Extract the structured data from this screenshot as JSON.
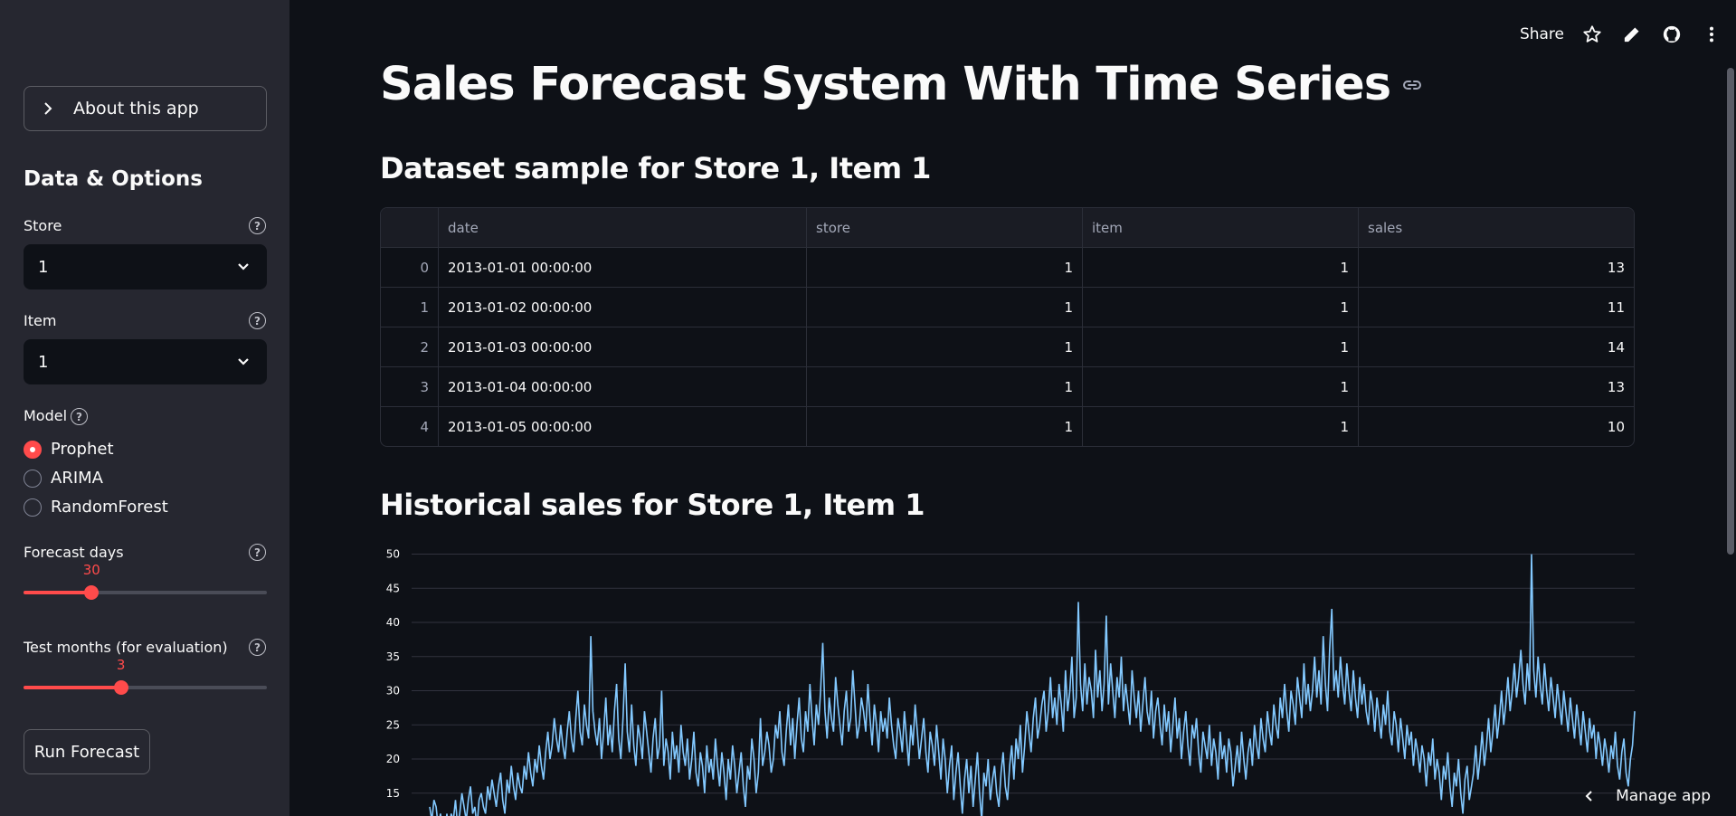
{
  "sidebar": {
    "about_label": "About this app",
    "section_title": "Data & Options",
    "store": {
      "label": "Store",
      "value": "1"
    },
    "item": {
      "label": "Item",
      "value": "1"
    },
    "model": {
      "label": "Model",
      "options": [
        "Prophet",
        "ARIMA",
        "RandomForest"
      ],
      "selected": "Prophet"
    },
    "forecast_days": {
      "label": "Forecast days",
      "value": "30",
      "fraction": 0.28
    },
    "test_months": {
      "label": "Test months (for evaluation)",
      "value": "3",
      "fraction": 0.4
    },
    "run_label": "Run Forecast"
  },
  "toolbar": {
    "share_label": "Share"
  },
  "main": {
    "title": "Sales Forecast System With Time Series",
    "dataset_heading": "Dataset sample for Store 1, Item 1",
    "history_heading": "Historical sales for Store 1, Item 1"
  },
  "table": {
    "columns": [
      "date",
      "store",
      "item",
      "sales"
    ],
    "rows": [
      [
        "0",
        "2013-01-01 00:00:00",
        "1",
        "1",
        "13"
      ],
      [
        "1",
        "2013-01-02 00:00:00",
        "1",
        "1",
        "11"
      ],
      [
        "2",
        "2013-01-03 00:00:00",
        "1",
        "1",
        "14"
      ],
      [
        "3",
        "2013-01-04 00:00:00",
        "1",
        "1",
        "13"
      ],
      [
        "4",
        "2013-01-05 00:00:00",
        "1",
        "1",
        "10"
      ]
    ]
  },
  "chart_data": {
    "type": "line",
    "title": "",
    "xlabel": "",
    "ylabel": "",
    "ylim": [
      8,
      51
    ],
    "yticks": [
      15,
      20,
      25,
      30,
      35,
      40,
      45,
      50
    ],
    "grid": true,
    "line_color": "#83c9ff",
    "series": [
      {
        "values": [
          13,
          11,
          14,
          13,
          10,
          12,
          10,
          9,
          12,
          9,
          12,
          11,
          14,
          10,
          12,
          15,
          13,
          11,
          14,
          16,
          12,
          13,
          10,
          14,
          15,
          13,
          12,
          16,
          14,
          17,
          15,
          13,
          16,
          18,
          14,
          12,
          17,
          15,
          19,
          16,
          14,
          18,
          16,
          15,
          19,
          17,
          21,
          18,
          16,
          20,
          18,
          22,
          19,
          17,
          21,
          24,
          20,
          22,
          26,
          23,
          21,
          25,
          22,
          20,
          24,
          27,
          23,
          21,
          26,
          30,
          24,
          22,
          28,
          25,
          23,
          38,
          27,
          24,
          22,
          26,
          20,
          24,
          29,
          22,
          25,
          21,
          27,
          31,
          23,
          20,
          26,
          34,
          24,
          21,
          28,
          22,
          19,
          25,
          23,
          20,
          27,
          24,
          21,
          18,
          23,
          26,
          20,
          22,
          30,
          19,
          23,
          21,
          17,
          24,
          20,
          22,
          18,
          25,
          21,
          19,
          23,
          17,
          20,
          24,
          18,
          16,
          21,
          19,
          15,
          22,
          18,
          20,
          17,
          23,
          19,
          16,
          21,
          18,
          14,
          20,
          17,
          22,
          19,
          15,
          18,
          21,
          16,
          13,
          19,
          17,
          23,
          20,
          15,
          18,
          26,
          19,
          21,
          24,
          22,
          18,
          20,
          25,
          23,
          27,
          21,
          19,
          24,
          28,
          22,
          26,
          20,
          25,
          29,
          23,
          21,
          27,
          24,
          31,
          26,
          22,
          28,
          25,
          30,
          37,
          27,
          23,
          29,
          26,
          24,
          32,
          28,
          25,
          22,
          27,
          30,
          24,
          26,
          33,
          28,
          23,
          25,
          29,
          27,
          24,
          31,
          26,
          22,
          28,
          25,
          21,
          27,
          24,
          26,
          23,
          29,
          25,
          22,
          20,
          26,
          24,
          21,
          27,
          23,
          19,
          25,
          22,
          28,
          24,
          20,
          23,
          26,
          21,
          18,
          24,
          22,
          19,
          25,
          21,
          17,
          23,
          20,
          15,
          19,
          22,
          14,
          18,
          21,
          16,
          12,
          17,
          20,
          15,
          19,
          13,
          17,
          21,
          15,
          11,
          18,
          16,
          20,
          14,
          17,
          19,
          15,
          13,
          18,
          21,
          16,
          14,
          19,
          22,
          17,
          23,
          20,
          25,
          18,
          22,
          27,
          24,
          21,
          26,
          29,
          23,
          25,
          28,
          30,
          24,
          27,
          32,
          26,
          29,
          25,
          31,
          28,
          24,
          33,
          27,
          30,
          35,
          26,
          29,
          43,
          31,
          27,
          34,
          28,
          32,
          30,
          26,
          36,
          29,
          33,
          27,
          31,
          41,
          28,
          34,
          30,
          26,
          32,
          29,
          35,
          27,
          31,
          28,
          25,
          33,
          29,
          26,
          30,
          24,
          28,
          32,
          27,
          25,
          30,
          23,
          27,
          29,
          25,
          22,
          28,
          24,
          27,
          21,
          25,
          29,
          23,
          26,
          20,
          24,
          27,
          22,
          19,
          25,
          23,
          26,
          21,
          18,
          24,
          22,
          20,
          25,
          19,
          23,
          21,
          17,
          24,
          20,
          22,
          18,
          23,
          21,
          16,
          19,
          22,
          18,
          24,
          20,
          17,
          21,
          23,
          19,
          25,
          22,
          20,
          26,
          23,
          21,
          27,
          24,
          22,
          28,
          25,
          23,
          29,
          26,
          31,
          27,
          24,
          30,
          28,
          25,
          32,
          29,
          26,
          34,
          28,
          31,
          27,
          30,
          35,
          29,
          33,
          28,
          38,
          31,
          27,
          36,
          42,
          30,
          33,
          29,
          35,
          31,
          28,
          34,
          30,
          27,
          33,
          29,
          26,
          32,
          28,
          31,
          27,
          25,
          30,
          28,
          24,
          29,
          26,
          23,
          28,
          25,
          30,
          24,
          22,
          27,
          25,
          21,
          26,
          23,
          20,
          25,
          22,
          24,
          19,
          23,
          21,
          18,
          22,
          20,
          16,
          21,
          19,
          23,
          17,
          20,
          18,
          14,
          19,
          17,
          21,
          16,
          13,
          18,
          16,
          20,
          15,
          12,
          17,
          19,
          14,
          16,
          18,
          22,
          17,
          20,
          24,
          19,
          22,
          26,
          21,
          24,
          28,
          23,
          26,
          30,
          25,
          28,
          32,
          27,
          30,
          34,
          29,
          32,
          36,
          31,
          28,
          34,
          30,
          50,
          33,
          29,
          35,
          31,
          28,
          34,
          30,
          27,
          32,
          29,
          26,
          31,
          28,
          25,
          30,
          27,
          24,
          29,
          26,
          23,
          28,
          25,
          22,
          27,
          24,
          21,
          26,
          23,
          25,
          20,
          24,
          22,
          19,
          23,
          21,
          18,
          22,
          20,
          24,
          19,
          17,
          21,
          23,
          18,
          16,
          20,
          22,
          27
        ]
      }
    ]
  }
}
